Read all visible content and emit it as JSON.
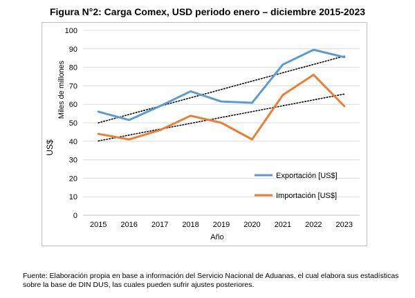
{
  "title": "Figura N°2: Carga Comex, USD periodo enero – diciembre 2015-2023",
  "source_note": "Fuente: Elaboración propia en base a información del Servicio Nacional de Aduanas, el cual elabora sus estadísticas sobre la base de DIN DUS, las cuales pueden sufrir ajustes posteriores.",
  "chart_data": {
    "type": "line",
    "x": [
      "2015",
      "2016",
      "2017",
      "2018",
      "2019",
      "2020",
      "2021",
      "2022",
      "2023"
    ],
    "xlabel": "Año",
    "ylabel_outer": "US$",
    "ylabel_inner": "Miles de millones",
    "ylim": [
      0,
      100
    ],
    "yticks": [
      0,
      10,
      20,
      30,
      40,
      50,
      60,
      70,
      80,
      90,
      100
    ],
    "grid": true,
    "legend_position": "inside-lower-right",
    "series": [
      {
        "name": "Exportación [US$]",
        "color": "#5b9bd5",
        "values": [
          56,
          51.5,
          59,
          67,
          61.5,
          60.8,
          81.5,
          89.5,
          85.5
        ],
        "trendline": true
      },
      {
        "name": "Importación [US$]",
        "color": "#ed7d31",
        "values": [
          44,
          41,
          46,
          53.8,
          50,
          41,
          65,
          76,
          59
        ],
        "trendline": true
      }
    ]
  }
}
